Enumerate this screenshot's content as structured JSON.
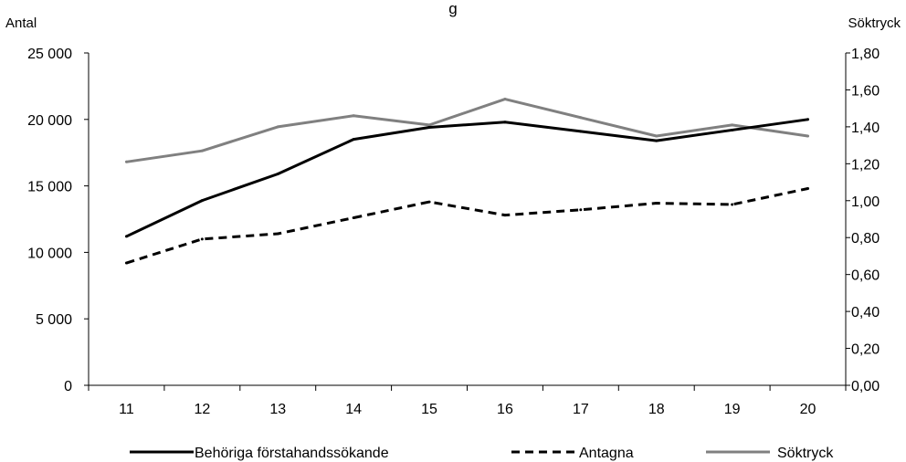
{
  "chart_data": {
    "type": "line",
    "title": "",
    "title_fragment": "g",
    "categories": [
      "11",
      "12",
      "13",
      "14",
      "15",
      "16",
      "17",
      "18",
      "19",
      "20"
    ],
    "left_axis": {
      "label": "Antal",
      "ylim": [
        0,
        25000
      ],
      "ticks": [
        0,
        5000,
        10000,
        15000,
        20000,
        25000
      ],
      "tick_labels": [
        "0",
        "5 000",
        "10 000",
        "15 000",
        "20 000",
        "25 000"
      ]
    },
    "right_axis": {
      "label": "Söktryck",
      "ylim": [
        0,
        1.8
      ],
      "ticks": [
        0,
        0.2,
        0.4,
        0.6,
        0.8,
        1.0,
        1.2,
        1.4,
        1.6,
        1.8
      ],
      "tick_labels": [
        "0,00",
        "0,20",
        "0,40",
        "0,60",
        "0,80",
        "1,00",
        "1,20",
        "1,40",
        "1,60",
        "1,80"
      ]
    },
    "series": [
      {
        "name": "Behöriga förstahandssökande",
        "axis": "left",
        "style": "solid",
        "color": "#000000",
        "values": [
          11200,
          13900,
          15900,
          18500,
          19400,
          19800,
          19100,
          18400,
          19200,
          20000
        ]
      },
      {
        "name": "Antagna",
        "axis": "left",
        "style": "dashed",
        "color": "#000000",
        "values": [
          9200,
          11000,
          11400,
          12600,
          13800,
          12800,
          13200,
          13700,
          13600,
          14800
        ]
      },
      {
        "name": "Söktryck",
        "axis": "right",
        "style": "solid",
        "color": "#808080",
        "values": [
          1.21,
          1.27,
          1.4,
          1.46,
          1.41,
          1.55,
          1.45,
          1.35,
          1.41,
          1.35
        ]
      }
    ],
    "grid": false,
    "legend_position": "bottom"
  }
}
